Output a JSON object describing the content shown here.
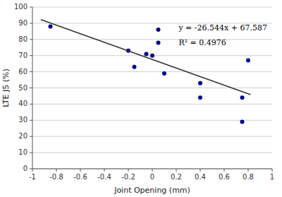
{
  "chart_data": {
    "type": "scatter",
    "xlabel": "Joint Opening (mm)",
    "ylabel": "LTE J5 (%)",
    "series": [
      {
        "type": "scatter",
        "marker": "circle",
        "color": "#00008B",
        "x": [
          -0.85,
          -0.2,
          -0.15,
          -0.05,
          0.0,
          0.05,
          0.05,
          0.1,
          0.4,
          0.4,
          0.75,
          0.75,
          0.8
        ],
        "values": [
          88,
          73,
          63,
          71,
          70,
          78,
          86,
          59,
          53,
          44,
          44,
          29,
          67
        ]
      },
      {
        "type": "line",
        "line_style": "solid",
        "color": "#333333",
        "x": [
          -0.93,
          0.82
        ],
        "values": [
          92.27292,
          45.82092
        ]
      }
    ],
    "annotations": [
      {
        "text": "y = -26.544x + 67.587",
        "x": 0.22,
        "y": 89
      },
      {
        "text": "R² = 0.4976",
        "x": 0.22,
        "y": 80
      }
    ],
    "xlim": [
      -1.0,
      1.0
    ],
    "ylim": [
      0,
      100
    ],
    "xticks": [
      -1.0,
      -0.8,
      -0.6,
      -0.4,
      -0.2,
      0.0,
      0.2,
      0.4,
      0.6,
      0.8,
      1.0
    ],
    "yticks": [
      0,
      10,
      20,
      30,
      40,
      50,
      60,
      70,
      80,
      90,
      100
    ],
    "grid": true
  }
}
